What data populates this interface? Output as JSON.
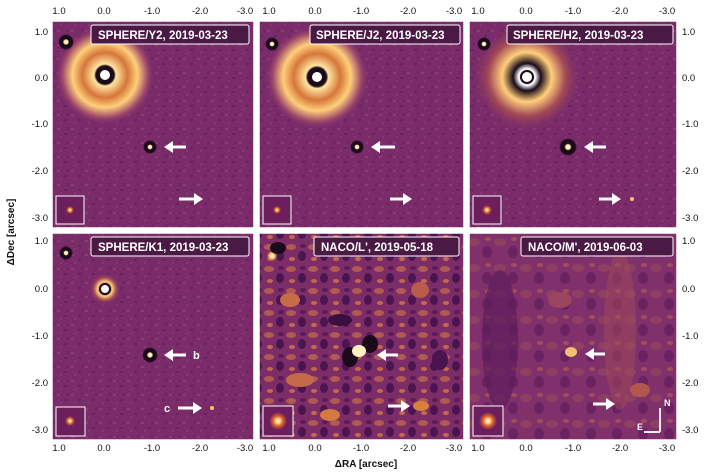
{
  "panels": [
    {
      "title": "SPHERE/Y2, 2019-03-23"
    },
    {
      "title": "SPHERE/J2, 2019-03-23"
    },
    {
      "title": "SPHERE/H2, 2019-03-23"
    },
    {
      "title": "SPHERE/K1, 2019-03-23"
    },
    {
      "title": "NACO/L', 2019-05-18"
    },
    {
      "title": "NACO/M', 2019-06-03"
    }
  ],
  "axes": {
    "xlabel": "ΔRA [arcsec]",
    "ylabel": "ΔDec [arcsec]",
    "x_ticks": [
      "1.0",
      "0.0",
      "-1.0",
      "-2.0",
      "-3.0"
    ],
    "y_ticks": [
      "1.0",
      "0.0",
      "-1.0",
      "-2.0",
      "-3.0"
    ]
  },
  "annotations": {
    "label_b": "b",
    "label_c": "c",
    "compass_north": "N",
    "compass_east": "E"
  },
  "colors": {
    "background": "#7a2b6a",
    "speckle_bright": "#ffd27a",
    "speckle_dark": "#1a0a1a",
    "frame": "#ffffff"
  }
}
